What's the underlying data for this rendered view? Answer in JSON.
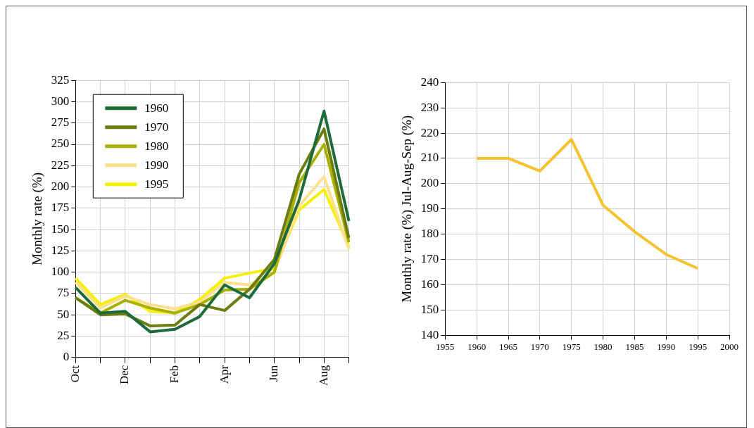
{
  "chart_data": [
    {
      "type": "line",
      "ylabel": "Monthly rate (%)",
      "categories": [
        "Oct",
        null,
        "Dec",
        null,
        "Feb",
        null,
        "Apr",
        null,
        "Jun",
        null,
        "Aug",
        null
      ],
      "series": [
        {
          "name": "1960",
          "color": "#1e6b3a",
          "values": [
            82,
            52,
            54,
            30,
            33,
            48,
            85,
            70,
            110,
            185,
            289,
            160
          ]
        },
        {
          "name": "1970",
          "color": "#6b7d10",
          "values": [
            70,
            50,
            51,
            37,
            38,
            62,
            55,
            80,
            115,
            215,
            268,
            140
          ]
        },
        {
          "name": "1980",
          "color": "#aab000",
          "values": [
            70,
            52,
            67,
            58,
            52,
            62,
            79,
            80,
            100,
            205,
            250,
            135
          ]
        },
        {
          "name": "1990",
          "color": "#fde08c",
          "values": [
            88,
            58,
            72,
            62,
            57,
            65,
            88,
            85,
            100,
            178,
            212,
            127
          ]
        },
        {
          "name": "1995",
          "color": "#f5ef00",
          "values": [
            93,
            62,
            74,
            54,
            52,
            68,
            93,
            99,
            104,
            173,
            197,
            130
          ]
        }
      ],
      "ylim": [
        0,
        325
      ],
      "yticks": [
        0,
        25,
        50,
        75,
        100,
        125,
        150,
        175,
        200,
        225,
        250,
        275,
        300,
        325
      ],
      "grid": true,
      "legend": "top left",
      "marker": "none"
    },
    {
      "type": "line",
      "ylabel": "Monthly rate (%) Jul-Aug-Sep (%)",
      "x": [
        1960,
        1965,
        1970,
        1975,
        1980,
        1985,
        1990,
        1995
      ],
      "series": [
        {
          "color": "#f5c232",
          "values": [
            210,
            210,
            205,
            217.5,
            191.5,
            181,
            172,
            166.5
          ]
        }
      ],
      "xlim": [
        1955,
        2000
      ],
      "xticks": [
        1955,
        1960,
        1965,
        1970,
        1975,
        1980,
        1985,
        1990,
        1995,
        2000
      ],
      "ylim": [
        140,
        240
      ],
      "yticks": [
        140,
        150,
        160,
        170,
        180,
        190,
        200,
        210,
        220,
        230,
        240
      ],
      "grid": true,
      "marker": "none"
    }
  ]
}
